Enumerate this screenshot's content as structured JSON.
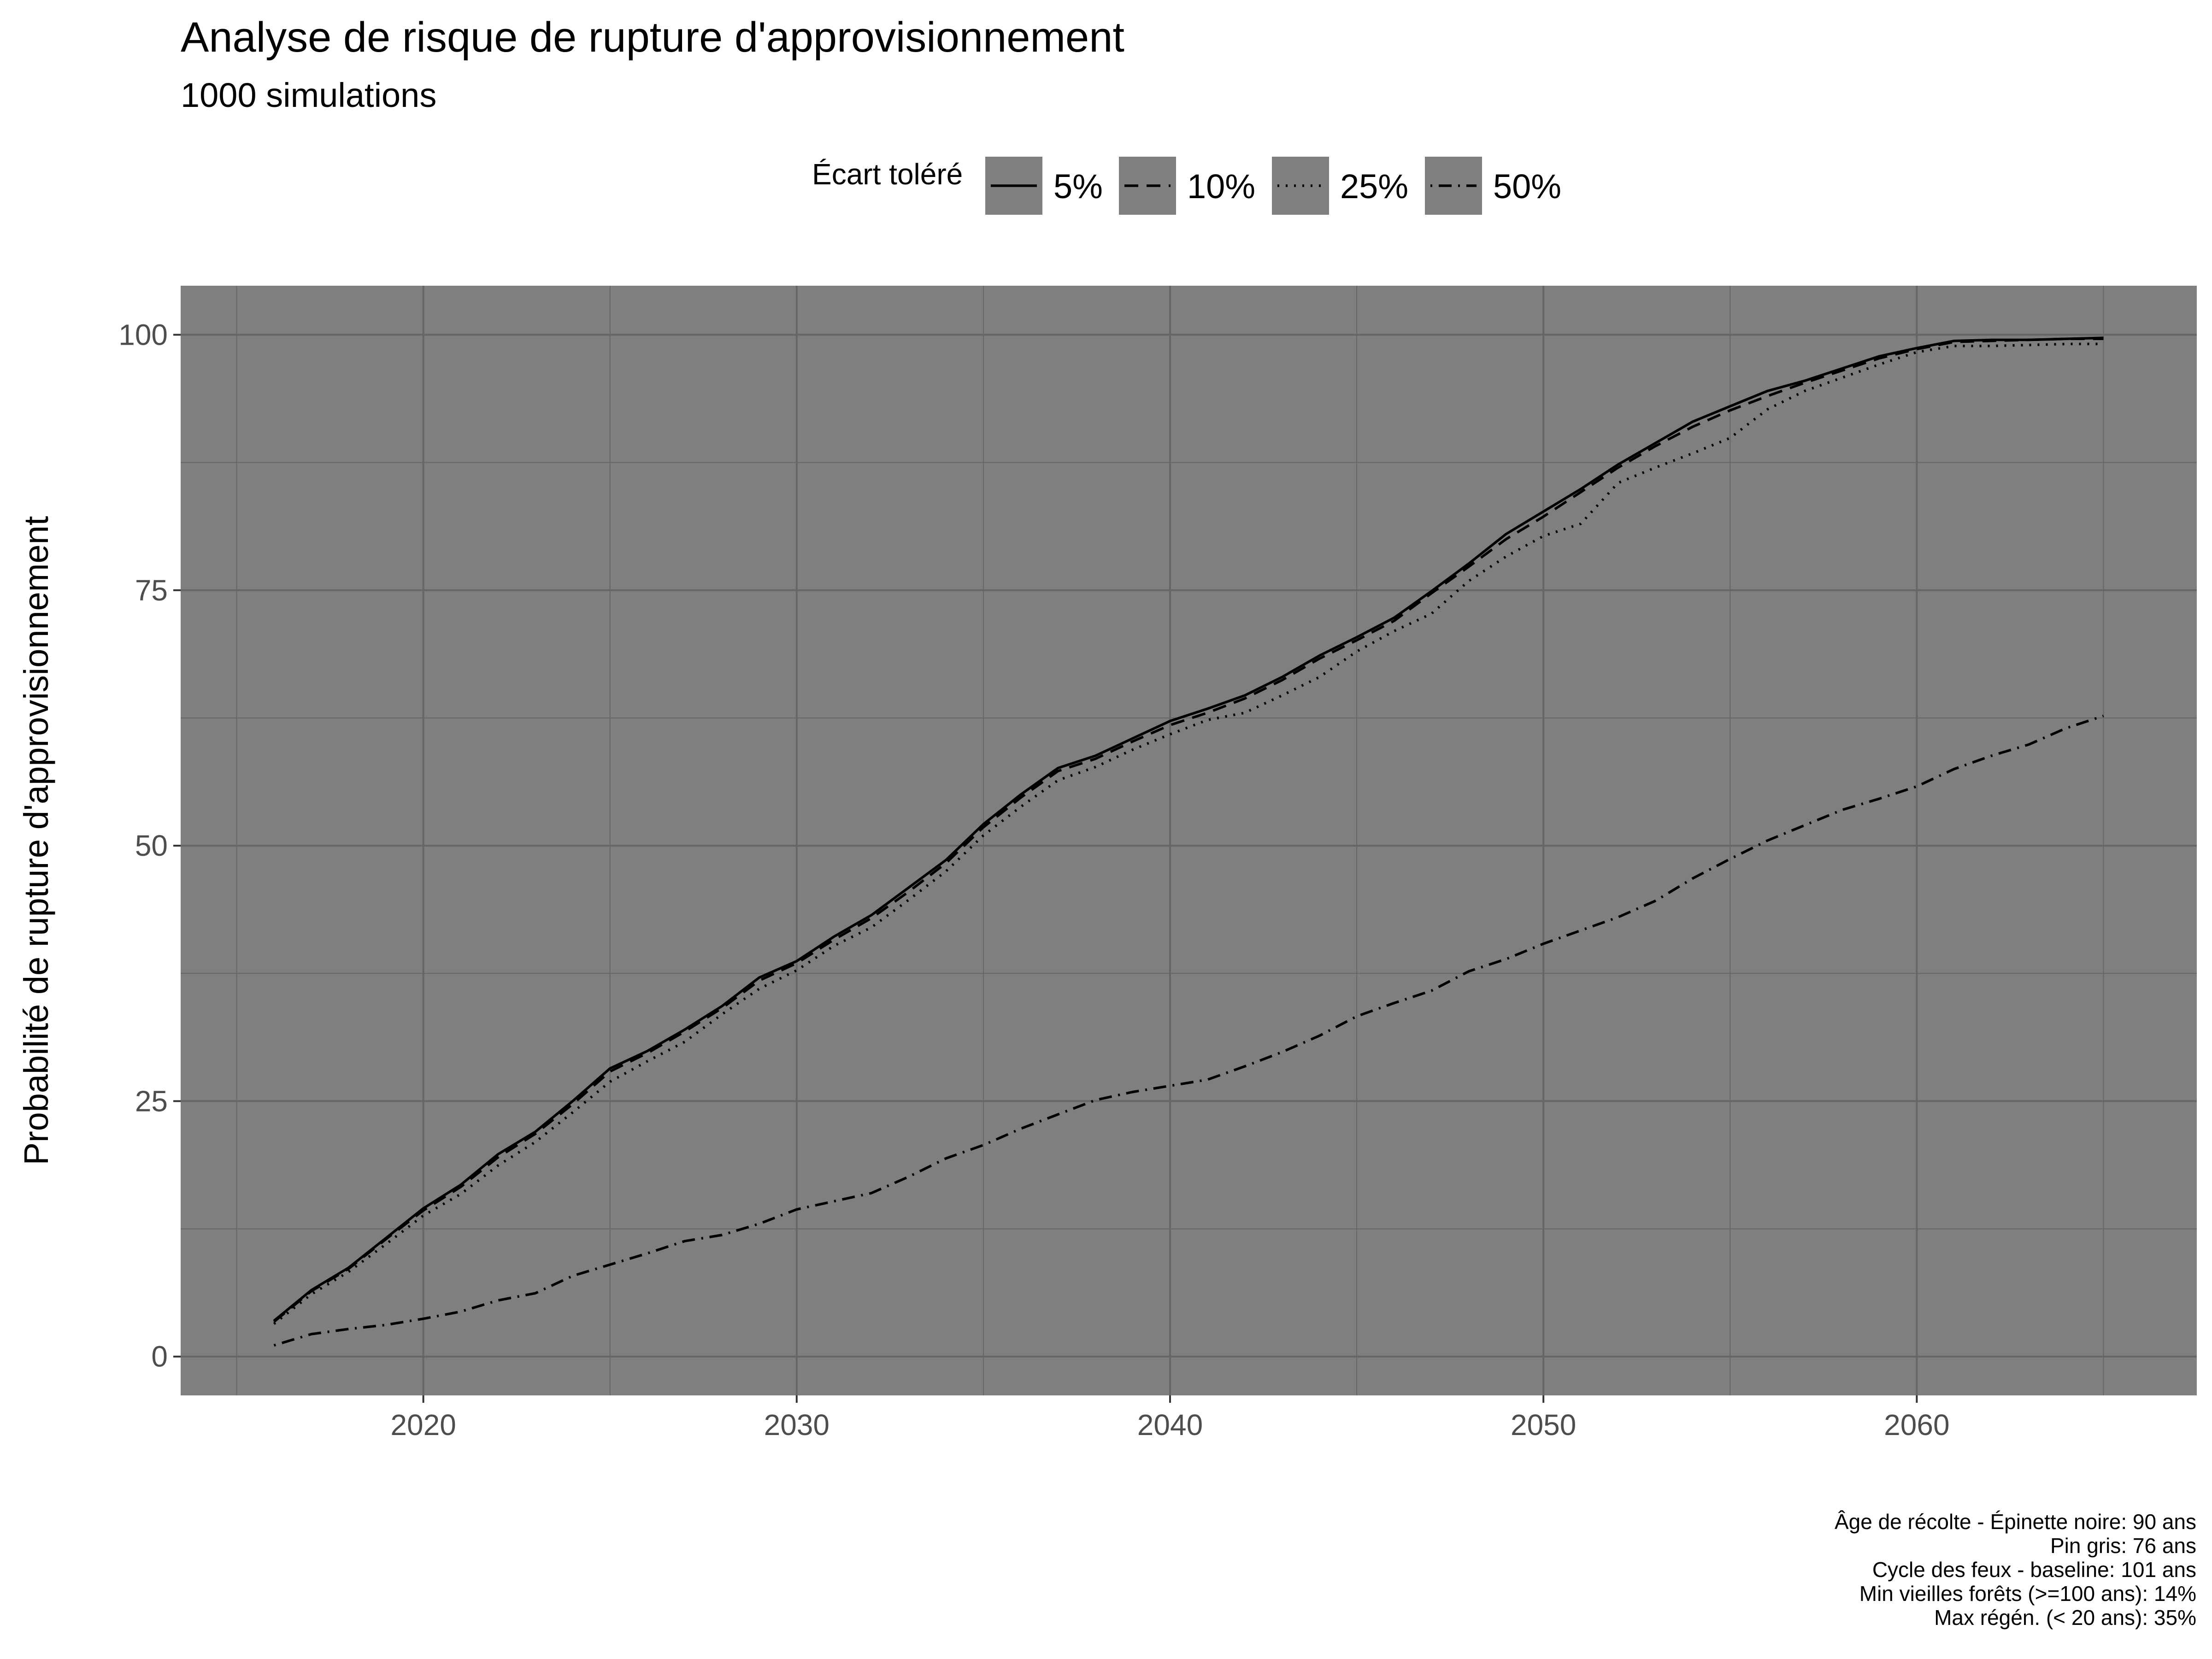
{
  "chart_data": {
    "type": "line",
    "title": "Analyse de risque de rupture d'approvisionnement",
    "subtitle": "1000 simulations",
    "xlabel": "",
    "ylabel": "Probabilité de rupture d'approvisionnement",
    "xlim": [
      2013.5,
      2067.5
    ],
    "ylim": [
      -3.8,
      104.8
    ],
    "x_ticks": [
      2020,
      2030,
      2040,
      2050,
      2060
    ],
    "y_ticks": [
      0,
      25,
      50,
      75,
      100
    ],
    "grid": true,
    "panel_background": "#7f7f7f",
    "grid_color": "#666666",
    "legend": {
      "title": "Écart toléré",
      "position": "top"
    },
    "x": [
      2016,
      2017,
      2018,
      2019,
      2020,
      2021,
      2022,
      2023,
      2024,
      2025,
      2026,
      2027,
      2028,
      2029,
      2030,
      2031,
      2032,
      2033,
      2034,
      2035,
      2036,
      2037,
      2038,
      2039,
      2040,
      2041,
      2042,
      2043,
      2044,
      2045,
      2046,
      2047,
      2048,
      2049,
      2050,
      2051,
      2052,
      2053,
      2054,
      2055,
      2056,
      2057,
      2058,
      2059,
      2060,
      2061,
      2062,
      2063,
      2064,
      2065
    ],
    "series": [
      {
        "name": "5%",
        "dash": "solid",
        "values": [
          3.5,
          6.5,
          8.7,
          11.6,
          14.5,
          16.8,
          19.8,
          22.0,
          25.0,
          28.2,
          29.9,
          32.0,
          34.3,
          37.1,
          38.7,
          41.1,
          43.2,
          45.9,
          48.6,
          52.1,
          55.0,
          57.6,
          58.8,
          60.5,
          62.2,
          63.4,
          64.7,
          66.5,
          68.6,
          70.4,
          72.3,
          74.9,
          77.6,
          80.5,
          82.7,
          84.9,
          87.3,
          89.4,
          91.5,
          93.0,
          94.5,
          95.5,
          96.7,
          97.9,
          98.7,
          99.4,
          99.5,
          99.5,
          99.6,
          99.7
        ]
      },
      {
        "name": "10%",
        "dash": "dashed",
        "values": [
          3.4,
          6.4,
          8.6,
          11.5,
          14.3,
          16.6,
          19.5,
          21.8,
          24.7,
          27.9,
          29.7,
          31.8,
          34.1,
          36.8,
          38.5,
          40.8,
          42.9,
          45.5,
          48.3,
          51.8,
          54.7,
          57.3,
          58.5,
          60.2,
          61.8,
          63.0,
          64.4,
          66.2,
          68.3,
          70.1,
          72.0,
          74.7,
          77.3,
          80.0,
          82.2,
          84.6,
          87.0,
          89.1,
          91.0,
          92.6,
          94.0,
          95.3,
          96.5,
          97.7,
          98.6,
          99.3,
          99.4,
          99.5,
          99.6,
          99.6
        ]
      },
      {
        "name": "25%",
        "dash": "dotted",
        "values": [
          3.2,
          6.1,
          8.3,
          11.0,
          13.8,
          15.9,
          18.7,
          21.0,
          23.9,
          26.9,
          28.9,
          30.8,
          33.5,
          36.0,
          37.8,
          40.2,
          42.0,
          44.7,
          47.5,
          51.0,
          53.8,
          56.4,
          57.7,
          59.4,
          60.9,
          62.3,
          63.0,
          64.7,
          66.5,
          69.0,
          71.0,
          72.7,
          75.9,
          78.3,
          80.3,
          81.5,
          85.5,
          87.0,
          88.4,
          89.9,
          92.7,
          94.5,
          95.8,
          97.1,
          98.3,
          98.9,
          98.9,
          99.0,
          99.1,
          99.1
        ]
      },
      {
        "name": "50%",
        "dash": "dotdash",
        "values": [
          1.1,
          2.2,
          2.7,
          3.1,
          3.7,
          4.4,
          5.5,
          6.2,
          7.9,
          9.0,
          10.1,
          11.3,
          11.9,
          13.0,
          14.4,
          15.2,
          16.0,
          17.6,
          19.4,
          20.7,
          22.3,
          23.7,
          25.1,
          25.9,
          26.5,
          27.1,
          28.4,
          29.8,
          31.4,
          33.3,
          34.6,
          35.8,
          37.7,
          38.9,
          40.4,
          41.7,
          43.0,
          44.6,
          46.8,
          48.7,
          50.5,
          52.0,
          53.5,
          54.6,
          55.8,
          57.5,
          58.8,
          59.9,
          61.5,
          62.7
        ]
      }
    ]
  },
  "caption": {
    "lines": [
      "Âge de récolte - Épinette noire: 90 ans",
      "Pin gris: 76 ans",
      "Cycle des feux - baseline: 101 ans",
      "Min vieilles forêts (>=100 ans): 14%",
      "Max régén. (< 20 ans): 35%"
    ]
  }
}
